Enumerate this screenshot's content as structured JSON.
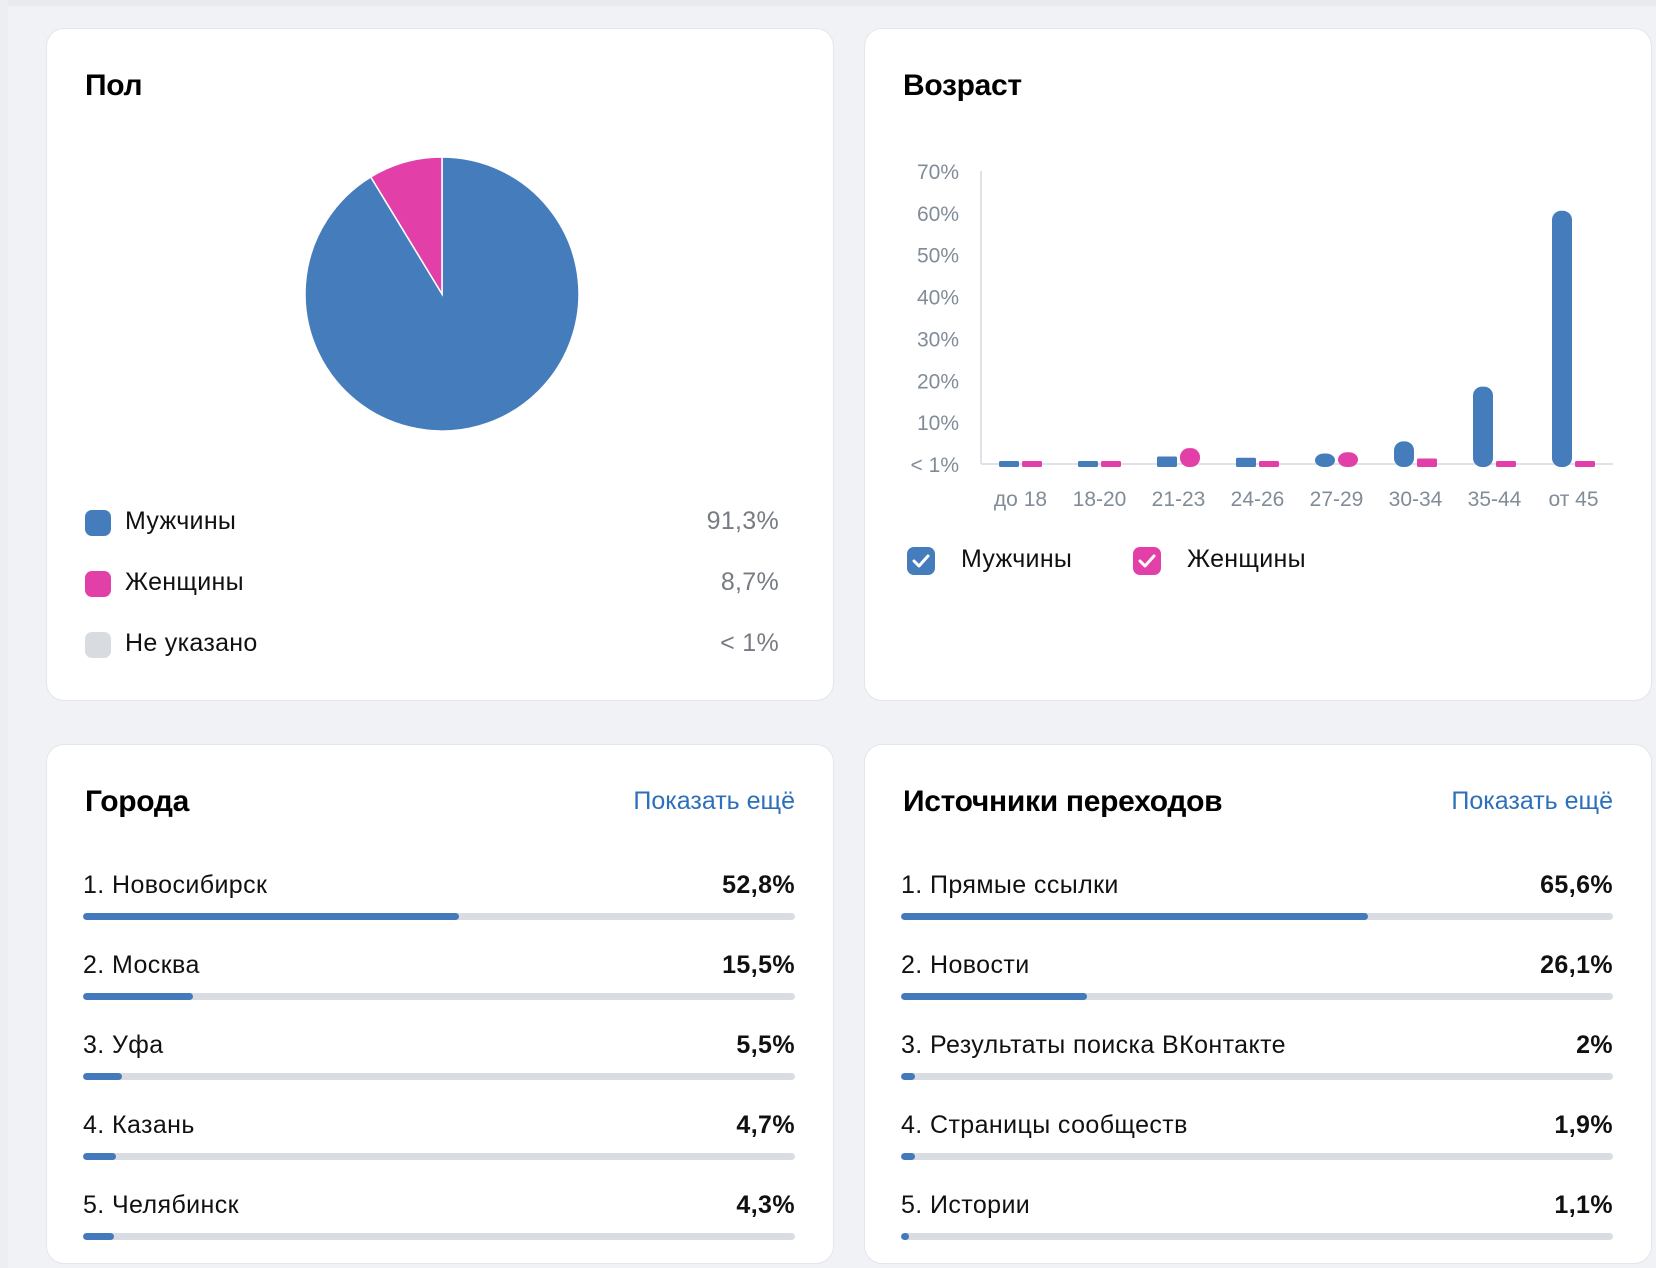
{
  "colors": {
    "men": "#447cbc",
    "women": "#e23fa8",
    "unspecified": "#d8dbe0",
    "accent": "#2d6fba",
    "bar": "#4479bb"
  },
  "gender": {
    "title": "Пол",
    "chart_data": {
      "type": "pie",
      "categories": [
        "Мужчины",
        "Женщины",
        "Не указано"
      ],
      "values": [
        91.3,
        8.7,
        0
      ]
    },
    "legend": [
      {
        "label": "Мужчины",
        "value": "91,3%",
        "color": "#447cbc"
      },
      {
        "label": "Женщины",
        "value": "8,7%",
        "color": "#e23fa8"
      },
      {
        "label": "Не указано",
        "value": "< 1%",
        "color": "#d8dbe0"
      }
    ]
  },
  "age": {
    "title": "Возраст",
    "chart_data": {
      "type": "bar",
      "categories": [
        "до 18",
        "18-20",
        "21-23",
        "24-26",
        "27-29",
        "30-34",
        "35-44",
        "от 45"
      ],
      "series": [
        {
          "name": "Мужчины",
          "color": "#447cbc",
          "values": [
            0.2,
            0.2,
            1.8,
            1.5,
            2.5,
            5.4,
            18.5,
            60.5
          ]
        },
        {
          "name": "Женщины",
          "color": "#e23fa8",
          "values": [
            0.2,
            0.2,
            3.8,
            0.3,
            2.8,
            1.3,
            0.3,
            0.3
          ]
        }
      ],
      "ylim": [
        0,
        70
      ],
      "yticks": [
        "< 1%",
        "10%",
        "20%",
        "30%",
        "40%",
        "50%",
        "60%",
        "70%"
      ],
      "legend_position": "bottom-left"
    },
    "legend": [
      {
        "label": "Мужчины",
        "checked": true,
        "color": "#447cbc"
      },
      {
        "label": "Женщины",
        "checked": true,
        "color": "#e23fa8"
      }
    ]
  },
  "cities": {
    "title": "Города",
    "show_more": "Показать ещё",
    "items": [
      {
        "label": "1. Новосибирск",
        "value": "52,8%",
        "fraction": 0.528
      },
      {
        "label": "2. Москва",
        "value": "15,5%",
        "fraction": 0.155
      },
      {
        "label": "3. Уфа",
        "value": "5,5%",
        "fraction": 0.055
      },
      {
        "label": "4. Казань",
        "value": "4,7%",
        "fraction": 0.047
      },
      {
        "label": "5. Челябинск",
        "value": "4,3%",
        "fraction": 0.043
      }
    ]
  },
  "sources": {
    "title": "Источники переходов",
    "show_more": "Показать ещё",
    "items": [
      {
        "label": "1. Прямые ссылки",
        "value": "65,6%",
        "fraction": 0.656
      },
      {
        "label": "2. Новости",
        "value": "26,1%",
        "fraction": 0.261
      },
      {
        "label": "3. Результаты поиска ВКонтакте",
        "value": "2%",
        "fraction": 0.02
      },
      {
        "label": "4. Страницы сообществ",
        "value": "1,9%",
        "fraction": 0.019
      },
      {
        "label": "5. Истории",
        "value": "1,1%",
        "fraction": 0.011
      }
    ]
  }
}
